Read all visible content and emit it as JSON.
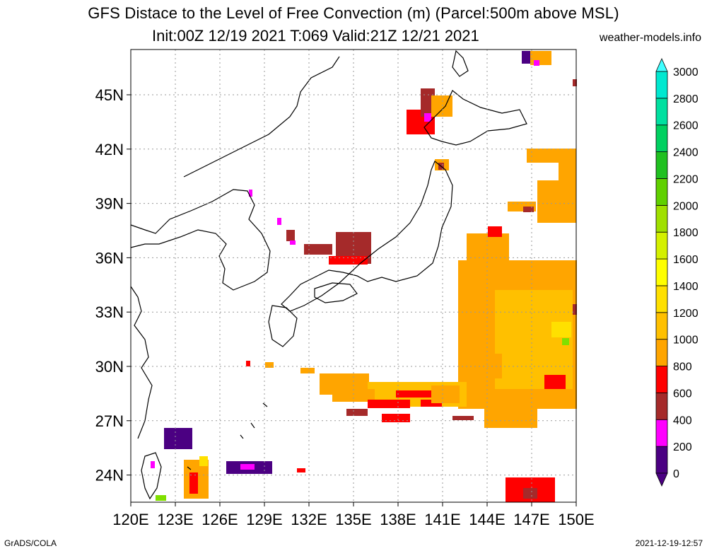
{
  "title": "GFS Distace to the Level of Free Convection (m) (Parcel:500m above MSL)",
  "subtitle": "Init:00Z 12/19 2021 T:069 Valid:21Z 12/21 2021",
  "site": "weather-models.info",
  "footer_left": "GrADS/COLA",
  "footer_right": "2021-12-19-12:57",
  "map": {
    "lon_range": [
      120,
      150
    ],
    "lat_range": [
      22.5,
      47.5
    ],
    "x_ticks": [
      "120E",
      "123E",
      "126E",
      "129E",
      "132E",
      "135E",
      "138E",
      "141E",
      "144E",
      "147E",
      "150E"
    ],
    "y_ticks": [
      "24N",
      "27N",
      "30N",
      "33N",
      "36N",
      "39N",
      "42N",
      "45N"
    ],
    "grid": "dotted"
  },
  "colorbar": {
    "levels": [
      "0",
      "200",
      "400",
      "600",
      "800",
      "1000",
      "1200",
      "1400",
      "1600",
      "1800",
      "2000",
      "2200",
      "2400",
      "2600",
      "2800",
      "3000"
    ],
    "colors": [
      "#4b0082",
      "#ff00ff",
      "#a52a2a",
      "#ff0000",
      "#ffa500",
      "#ffc000",
      "#ffe000",
      "#ffff00",
      "#d4f000",
      "#a0e000",
      "#60d000",
      "#20c020",
      "#00d060",
      "#00e0a0",
      "#00e8d0",
      "#40ffff"
    ]
  }
}
